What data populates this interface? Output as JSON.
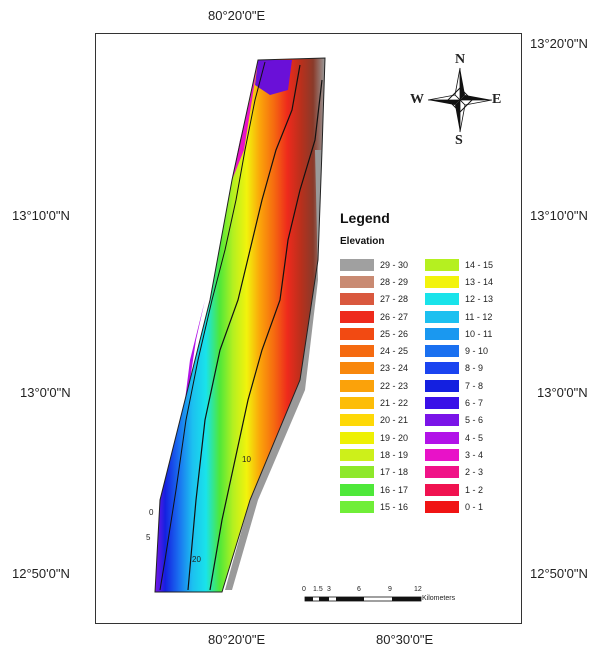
{
  "axis_labels": {
    "top": "80°20'0\"E",
    "bottom_left": "80°20'0\"E",
    "bottom_right": "80°30'0\"E",
    "left": [
      "13°10'0\"N",
      "13°0'0\"N",
      "12°50'0\"N"
    ],
    "right": [
      "13°20'0\"N",
      "13°10'0\"N",
      "13°0'0\"N",
      "12°50'0\"N"
    ]
  },
  "compass": {
    "n": "N",
    "s": "S",
    "e": "E",
    "w": "W"
  },
  "legend": {
    "title": "Legend",
    "subtitle": "Elevation",
    "left_col": [
      {
        "label": "29 - 30",
        "color": "#a0a0a0"
      },
      {
        "label": "28 - 29",
        "color": "#c98a72"
      },
      {
        "label": "27 - 28",
        "color": "#d9583e"
      },
      {
        "label": "26 - 27",
        "color": "#ee2a1c"
      },
      {
        "label": "25 - 26",
        "color": "#f24a12"
      },
      {
        "label": "24 - 25",
        "color": "#f56a10"
      },
      {
        "label": "23 - 24",
        "color": "#f8870c"
      },
      {
        "label": "22 - 23",
        "color": "#fba20a"
      },
      {
        "label": "21 - 22",
        "color": "#fdbd08"
      },
      {
        "label": "20 - 21",
        "color": "#fed806"
      },
      {
        "label": "19 - 20",
        "color": "#eef004"
      },
      {
        "label": "18 - 19",
        "color": "#cdf01a"
      },
      {
        "label": "17 - 18",
        "color": "#8ee82a"
      },
      {
        "label": "16 - 17",
        "color": "#4ee83a"
      },
      {
        "label": "15 - 16",
        "color": "#70ee38"
      }
    ],
    "right_col": [
      {
        "label": "14 - 15",
        "color": "#b5f020"
      },
      {
        "label": "13 - 14",
        "color": "#f2f30c"
      },
      {
        "label": "12 - 13",
        "color": "#19e3ea"
      },
      {
        "label": "11 - 12",
        "color": "#1cc0f0"
      },
      {
        "label": "10 - 11",
        "color": "#1a98f0"
      },
      {
        "label": "9 - 10",
        "color": "#1a70f0"
      },
      {
        "label": "8 - 9",
        "color": "#1a44f0"
      },
      {
        "label": "7 - 8",
        "color": "#1420e0"
      },
      {
        "label": "6 - 7",
        "color": "#3a10e8"
      },
      {
        "label": "5 - 6",
        "color": "#7a14e8"
      },
      {
        "label": "4 - 5",
        "color": "#b212e8"
      },
      {
        "label": "3 - 4",
        "color": "#e812c8"
      },
      {
        "label": "2 - 3",
        "color": "#f01288"
      },
      {
        "label": "1 - 2",
        "color": "#f01250"
      },
      {
        "label": "0 - 1",
        "color": "#f01414"
      }
    ]
  },
  "scalebar": {
    "ticks": [
      "0",
      "1.5",
      "3",
      "6",
      "9",
      "12"
    ],
    "unit": "Kilometers"
  },
  "contour_labels": [
    "0",
    "5",
    "20",
    "10"
  ]
}
